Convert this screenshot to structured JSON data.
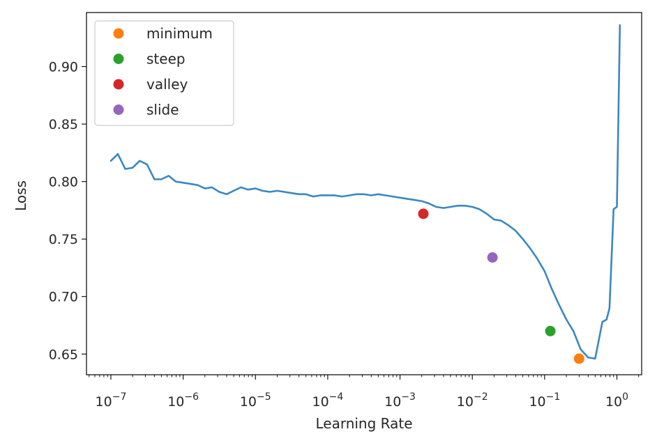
{
  "chart_data": {
    "type": "line",
    "xlabel": "Learning Rate",
    "ylabel": "Loss",
    "xscale": "log",
    "xlim": [
      4.6e-08,
      2.2
    ],
    "ylim": [
      0.632,
      0.947
    ],
    "grid": false,
    "legend_position": "top-left",
    "x_ticks": [
      {
        "value": 1e-07,
        "label": "10",
        "exp": "−7"
      },
      {
        "value": 1e-06,
        "label": "10",
        "exp": "−6"
      },
      {
        "value": 1e-05,
        "label": "10",
        "exp": "−5"
      },
      {
        "value": 0.0001,
        "label": "10",
        "exp": "−4"
      },
      {
        "value": 0.001,
        "label": "10",
        "exp": "−3"
      },
      {
        "value": 0.01,
        "label": "10",
        "exp": "−2"
      },
      {
        "value": 0.1,
        "label": "10",
        "exp": "−1"
      },
      {
        "value": 1,
        "label": "10",
        "exp": "0"
      }
    ],
    "y_ticks": [
      {
        "value": 0.65,
        "label": "0.65"
      },
      {
        "value": 0.7,
        "label": "0.70"
      },
      {
        "value": 0.75,
        "label": "0.75"
      },
      {
        "value": 0.8,
        "label": "0.80"
      },
      {
        "value": 0.85,
        "label": "0.85"
      },
      {
        "value": 0.9,
        "label": "0.90"
      }
    ],
    "series": [
      {
        "color": "#3a87c2",
        "x": [
          1e-07,
          1.25e-07,
          1.58e-07,
          2e-07,
          2.5e-07,
          3.16e-07,
          4e-07,
          5e-07,
          6.3e-07,
          7.9e-07,
          1e-06,
          1.25e-06,
          1.58e-06,
          2e-06,
          2.5e-06,
          3.16e-06,
          4e-06,
          5e-06,
          6.3e-06,
          7.9e-06,
          1e-05,
          1.25e-05,
          1.58e-05,
          2e-05,
          2.5e-05,
          3.16e-05,
          4e-05,
          5e-05,
          6.3e-05,
          7.9e-05,
          0.0001,
          0.000125,
          0.000158,
          0.0002,
          0.00025,
          0.000316,
          0.0004,
          0.0005,
          0.00063,
          0.00079,
          0.001,
          0.00125,
          0.00158,
          0.002,
          0.0025,
          0.00316,
          0.004,
          0.005,
          0.0063,
          0.0079,
          0.01,
          0.0125,
          0.0158,
          0.02,
          0.025,
          0.0316,
          0.04,
          0.05,
          0.063,
          0.079,
          0.1,
          0.125,
          0.158,
          0.2,
          0.25,
          0.316,
          0.4,
          0.5,
          0.63,
          0.72,
          0.79,
          0.9,
          1.0,
          1.1
        ],
        "y": [
          0.818,
          0.824,
          0.811,
          0.812,
          0.818,
          0.815,
          0.802,
          0.802,
          0.805,
          0.8,
          0.799,
          0.798,
          0.797,
          0.794,
          0.795,
          0.791,
          0.789,
          0.792,
          0.795,
          0.793,
          0.794,
          0.792,
          0.791,
          0.792,
          0.791,
          0.79,
          0.789,
          0.789,
          0.787,
          0.788,
          0.788,
          0.788,
          0.787,
          0.788,
          0.789,
          0.789,
          0.788,
          0.789,
          0.788,
          0.787,
          0.786,
          0.785,
          0.784,
          0.783,
          0.781,
          0.778,
          0.777,
          0.778,
          0.779,
          0.779,
          0.778,
          0.776,
          0.772,
          0.767,
          0.766,
          0.762,
          0.757,
          0.75,
          0.742,
          0.733,
          0.722,
          0.707,
          0.693,
          0.68,
          0.67,
          0.654,
          0.647,
          0.646,
          0.678,
          0.68,
          0.69,
          0.776,
          0.778,
          0.936
        ]
      }
    ],
    "markers": [
      {
        "name": "minimum",
        "x": 0.3,
        "y": 0.646,
        "color": "#ff7f0e"
      },
      {
        "name": "steep",
        "x": 0.12,
        "y": 0.67,
        "color": "#2ca02c"
      },
      {
        "name": "valley",
        "x": 0.0021,
        "y": 0.772,
        "color": "#d62728"
      },
      {
        "name": "slide",
        "x": 0.019,
        "y": 0.734,
        "color": "#9467bd"
      }
    ]
  }
}
